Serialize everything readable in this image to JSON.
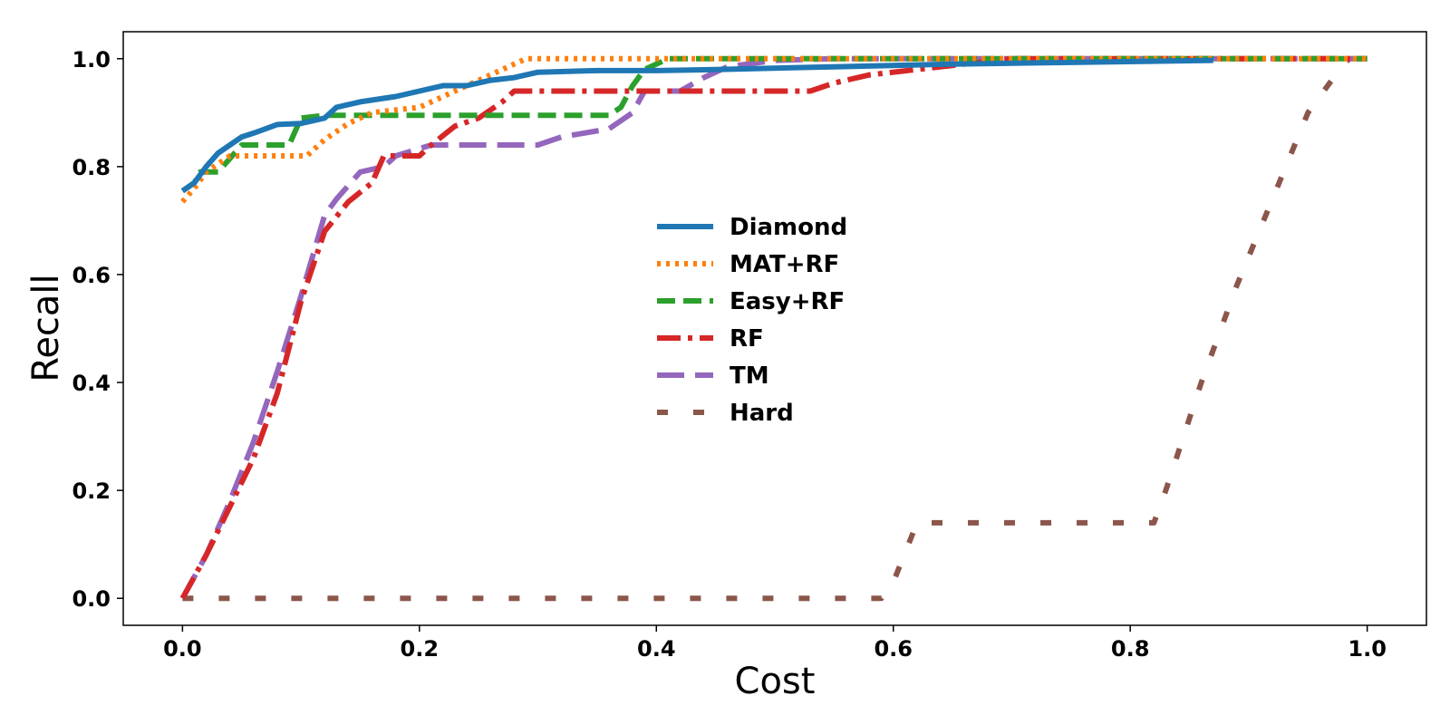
{
  "chart_data": {
    "type": "line",
    "xlabel": "Cost",
    "ylabel": "Recall",
    "xlim": [
      -0.05,
      1.05
    ],
    "ylim": [
      -0.05,
      1.05
    ],
    "xticks": [
      "0.0",
      "0.2",
      "0.4",
      "0.6",
      "0.8",
      "1.0"
    ],
    "yticks": [
      "0.0",
      "0.2",
      "0.4",
      "0.6",
      "0.8",
      "1.0"
    ],
    "grid": false,
    "legend_position": "center",
    "series": [
      {
        "name": "Diamond",
        "color": "#1f77b4",
        "style": "solid",
        "points": [
          [
            0,
            0.755
          ],
          [
            0.01,
            0.77
          ],
          [
            0.02,
            0.8
          ],
          [
            0.03,
            0.825
          ],
          [
            0.04,
            0.84
          ],
          [
            0.05,
            0.855
          ],
          [
            0.06,
            0.862
          ],
          [
            0.07,
            0.87
          ],
          [
            0.08,
            0.878
          ],
          [
            0.1,
            0.88
          ],
          [
            0.12,
            0.89
          ],
          [
            0.13,
            0.91
          ],
          [
            0.15,
            0.92
          ],
          [
            0.18,
            0.93
          ],
          [
            0.2,
            0.94
          ],
          [
            0.22,
            0.95
          ],
          [
            0.24,
            0.95
          ],
          [
            0.26,
            0.96
          ],
          [
            0.28,
            0.965
          ],
          [
            0.3,
            0.975
          ],
          [
            0.35,
            0.978
          ],
          [
            0.4,
            0.978
          ],
          [
            0.45,
            0.98
          ],
          [
            0.55,
            0.985
          ],
          [
            0.65,
            0.99
          ],
          [
            0.75,
            0.993
          ],
          [
            0.87,
            0.997
          ]
        ]
      },
      {
        "name": "MAT+RF",
        "color": "#ff7f0e",
        "style": "dotted",
        "points": [
          [
            0,
            0.735
          ],
          [
            0.01,
            0.76
          ],
          [
            0.02,
            0.79
          ],
          [
            0.04,
            0.82
          ],
          [
            0.08,
            0.82
          ],
          [
            0.105,
            0.82
          ],
          [
            0.12,
            0.85
          ],
          [
            0.14,
            0.88
          ],
          [
            0.16,
            0.9
          ],
          [
            0.18,
            0.905
          ],
          [
            0.2,
            0.91
          ],
          [
            0.22,
            0.93
          ],
          [
            0.24,
            0.95
          ],
          [
            0.26,
            0.97
          ],
          [
            0.28,
            0.99
          ],
          [
            0.29,
            1.0
          ],
          [
            1.0,
            1.0
          ]
        ]
      },
      {
        "name": "Easy+RF",
        "color": "#2ca02c",
        "style": "dashed",
        "points": [
          [
            0,
            0.755
          ],
          [
            0.01,
            0.77
          ],
          [
            0.015,
            0.79
          ],
          [
            0.03,
            0.79
          ],
          [
            0.04,
            0.815
          ],
          [
            0.05,
            0.84
          ],
          [
            0.09,
            0.84
          ],
          [
            0.1,
            0.89
          ],
          [
            0.12,
            0.895
          ],
          [
            0.3,
            0.895
          ],
          [
            0.36,
            0.895
          ],
          [
            0.37,
            0.91
          ],
          [
            0.38,
            0.95
          ],
          [
            0.39,
            0.98
          ],
          [
            0.41,
            1.0
          ],
          [
            1.0,
            1.0
          ]
        ]
      },
      {
        "name": "RF",
        "color": "#d62728",
        "style": "dashdot",
        "points": [
          [
            0,
            0
          ],
          [
            0.02,
            0.08
          ],
          [
            0.04,
            0.17
          ],
          [
            0.06,
            0.26
          ],
          [
            0.08,
            0.38
          ],
          [
            0.1,
            0.55
          ],
          [
            0.12,
            0.68
          ],
          [
            0.14,
            0.735
          ],
          [
            0.16,
            0.77
          ],
          [
            0.17,
            0.82
          ],
          [
            0.2,
            0.82
          ],
          [
            0.21,
            0.84
          ],
          [
            0.23,
            0.875
          ],
          [
            0.25,
            0.89
          ],
          [
            0.27,
            0.92
          ],
          [
            0.28,
            0.94
          ],
          [
            0.53,
            0.94
          ],
          [
            0.55,
            0.955
          ],
          [
            0.58,
            0.97
          ],
          [
            0.62,
            0.98
          ],
          [
            0.66,
            0.99
          ],
          [
            0.7,
            1.0
          ],
          [
            1.0,
            1.0
          ]
        ]
      },
      {
        "name": "TM",
        "color": "#9467bd",
        "style": "longdash",
        "points": [
          [
            0,
            0
          ],
          [
            0.02,
            0.08
          ],
          [
            0.04,
            0.18
          ],
          [
            0.06,
            0.29
          ],
          [
            0.08,
            0.42
          ],
          [
            0.1,
            0.56
          ],
          [
            0.12,
            0.71
          ],
          [
            0.13,
            0.74
          ],
          [
            0.15,
            0.79
          ],
          [
            0.17,
            0.8
          ],
          [
            0.18,
            0.82
          ],
          [
            0.21,
            0.84
          ],
          [
            0.24,
            0.84
          ],
          [
            0.3,
            0.84
          ],
          [
            0.32,
            0.855
          ],
          [
            0.36,
            0.87
          ],
          [
            0.38,
            0.9
          ],
          [
            0.39,
            0.94
          ],
          [
            0.42,
            0.94
          ],
          [
            0.44,
            0.965
          ],
          [
            0.46,
            0.985
          ],
          [
            0.5,
            0.997
          ],
          [
            0.55,
            1.0
          ],
          [
            1.0,
            1.0
          ]
        ]
      },
      {
        "name": "Hard",
        "color": "#8c564b",
        "style": "sparse",
        "points": [
          [
            0,
            0
          ],
          [
            0.59,
            0
          ],
          [
            0.6,
            0.03
          ],
          [
            0.62,
            0.14
          ],
          [
            0.82,
            0.14
          ],
          [
            0.83,
            0.2
          ],
          [
            0.86,
            0.4
          ],
          [
            0.89,
            0.58
          ],
          [
            0.92,
            0.74
          ],
          [
            0.95,
            0.9
          ],
          [
            0.98,
            0.99
          ],
          [
            0.985,
            1.0
          ]
        ]
      }
    ]
  }
}
